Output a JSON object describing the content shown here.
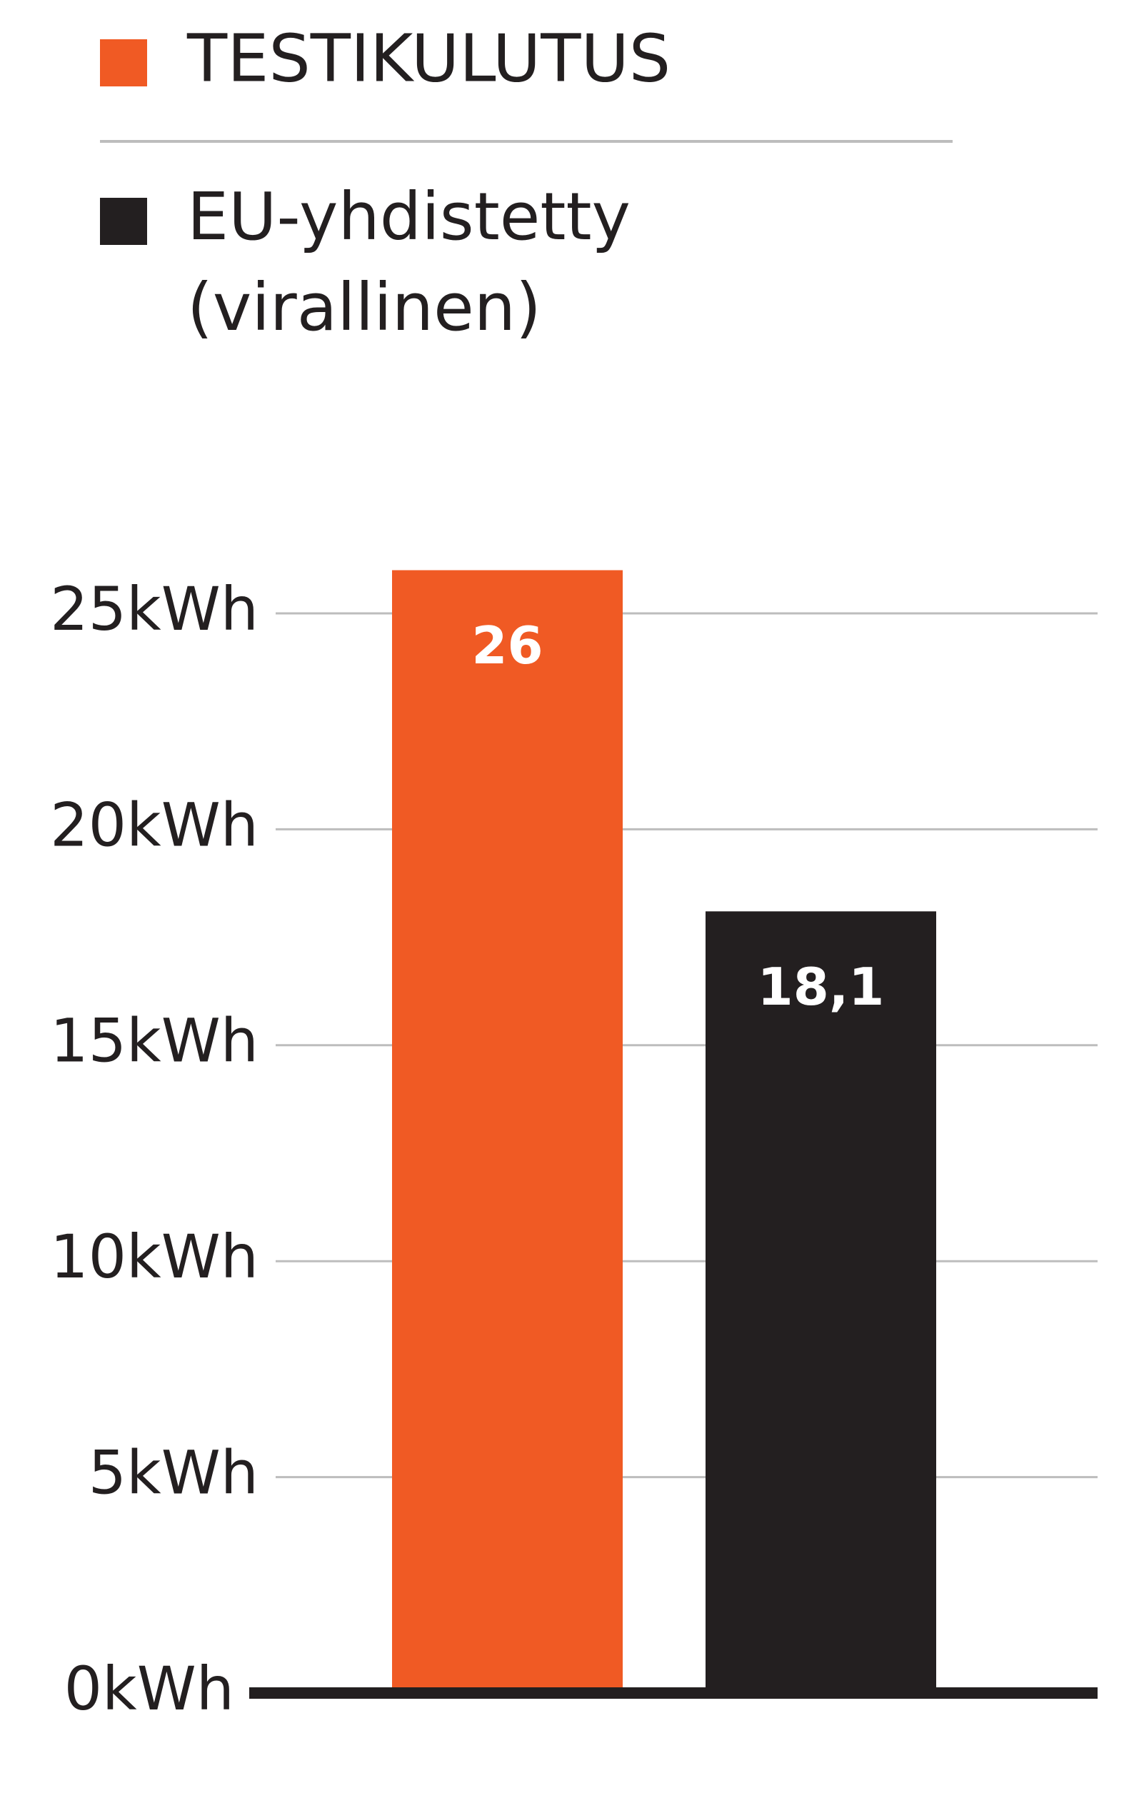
{
  "chart_data": {
    "type": "bar",
    "categories": [
      null
    ],
    "series": [
      {
        "name": "TESTIKULUTUS",
        "color": "#f05a24",
        "values": [
          26
        ]
      },
      {
        "name": "EU-yhdistetty (virallinen)",
        "color": "#231f20",
        "values": [
          18.1
        ],
        "value_labels": [
          "18,1"
        ]
      }
    ],
    "ylim": [
      0,
      26
    ],
    "yticks": [
      {
        "value": 0,
        "label": "0kWh"
      },
      {
        "value": 5,
        "label": "5kWh"
      },
      {
        "value": 10,
        "label": "10kWh"
      },
      {
        "value": 15,
        "label": "15kWh"
      },
      {
        "value": 20,
        "label": "20kWh"
      },
      {
        "value": 25,
        "label": "25kWh"
      }
    ],
    "grid": true
  }
}
